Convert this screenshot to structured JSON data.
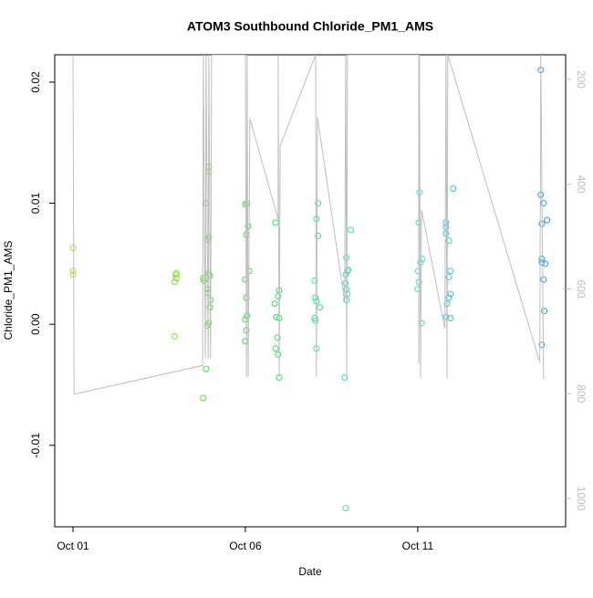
{
  "chart_data": {
    "type": "scatter",
    "title": "ATOM3 Southbound Chloride_PM1_AMS",
    "x_label": "Date",
    "y_label": "Chloride_PM1_AMS",
    "xlim": [
      0.47,
      15.29
    ],
    "xticks": [
      {
        "value": 1,
        "label": "Oct 01"
      },
      {
        "value": 6,
        "label": "Oct 06"
      },
      {
        "value": 11,
        "label": "Oct 11"
      }
    ],
    "ylim": [
      -0.01673,
      0.02226
    ],
    "yticks": [
      {
        "value": -0.01,
        "label": "-0.01"
      },
      {
        "value": 0,
        "label": "0.00"
      },
      {
        "value": 0.01,
        "label": "0.01"
      },
      {
        "value": 0.02,
        "label": "0.02"
      }
    ],
    "y2lim": [
      1054,
      153
    ],
    "y2ticks": [
      200,
      400,
      600,
      800,
      1000
    ],
    "y2_color": "#bebebe",
    "series": [
      {
        "color": "#a6e62e",
        "x": [
          1.0,
          1.0,
          1.0
        ],
        "values": [
          0.0063,
          0.0044,
          0.0041
        ]
      },
      {
        "color": "#7de62e",
        "x": [
          4.0,
          3.98,
          4.0,
          3.95,
          3.95
        ],
        "values": [
          0.0042,
          0.0041,
          0.0038,
          0.0035,
          -0.001
        ]
      },
      {
        "color": "#4ce62e",
        "x": [
          4.94,
          4.94,
          4.86,
          4.94,
          4.92,
          4.94,
          4.97,
          4.78,
          4.8,
          4.9,
          4.92,
          4.99,
          4.97,
          4.94,
          4.9,
          4.86,
          4.78
        ],
        "values": [
          0.013,
          0.0126,
          0.01,
          0.0072,
          0.007,
          0.0042,
          0.004,
          0.0038,
          0.0036,
          0.0029,
          0.0026,
          0.002,
          0.0014,
          0.0001,
          -0.0001,
          -0.0037,
          -0.0061
        ]
      },
      {
        "color": "#2ee63a",
        "x": [
          6.05,
          6.0,
          6.08,
          6.03,
          6.11,
          6.0,
          6.03,
          6.05,
          6.0,
          6.03,
          6.0
        ],
        "values": [
          0.01,
          0.0099,
          0.0081,
          0.0074,
          0.0044,
          0.0037,
          0.0022,
          0.0007,
          0.0004,
          -0.0005,
          -0.0014
        ]
      },
      {
        "color": "#2ee662",
        "x": [
          6.88,
          6.98,
          6.95,
          6.85,
          6.9,
          6.98,
          6.93,
          6.88,
          6.95,
          6.98
        ],
        "values": [
          0.0084,
          0.0028,
          0.0023,
          0.0017,
          0.0006,
          0.0005,
          -0.0011,
          -0.002,
          -0.0025,
          -0.0044
        ]
      },
      {
        "color": "#2ee68e",
        "x": [
          8.11,
          8.06,
          8.11,
          8.01,
          8.03,
          8.06,
          8.16,
          8.01,
          8.03,
          8.06
        ],
        "values": [
          0.01,
          0.0087,
          0.0073,
          0.0036,
          0.0022,
          0.0019,
          0.0014,
          0.0005,
          0.0003,
          -0.002
        ]
      },
      {
        "color": "#2ee6b6",
        "x": [
          9.06,
          8.93,
          8.98,
          8.96,
          8.91,
          8.91,
          8.93,
          8.96,
          8.93,
          8.88,
          8.91
        ],
        "values": [
          0.0078,
          0.0055,
          0.0045,
          0.0044,
          0.0041,
          0.0034,
          0.0029,
          0.0025,
          0.002,
          -0.0044,
          -0.0152
        ]
      },
      {
        "color": "#2ee6e0",
        "x": [
          11.05,
          11.03,
          11.13,
          11.08,
          11.01,
          11.03,
          11.0,
          11.11
        ],
        "values": [
          0.0109,
          0.0084,
          0.0054,
          0.0051,
          0.0044,
          0.0035,
          0.0029,
          0.0001
        ]
      },
      {
        "color": "#2ec8e6",
        "x": [
          12.03,
          11.82,
          11.82,
          11.82,
          11.9,
          11.95,
          11.9,
          11.95,
          11.9,
          11.85,
          11.82,
          11.95
        ],
        "values": [
          0.0112,
          0.0084,
          0.008,
          0.0075,
          0.0069,
          0.0044,
          0.0039,
          0.0025,
          0.0022,
          0.0017,
          0.0006,
          0.0005
        ]
      },
      {
        "color": "#2e9ee6",
        "x": [
          14.57,
          14.57,
          14.65,
          14.75,
          14.6,
          14.6,
          14.6,
          14.7,
          14.65,
          14.67,
          14.6
        ],
        "values": [
          0.021,
          0.0107,
          0.01,
          0.0086,
          0.0083,
          0.0054,
          0.0051,
          0.005,
          0.0037,
          0.0011,
          -0.0017
        ]
      },
      {
        "type": "line",
        "axis": "y2",
        "color": "#bebebe",
        "x": [
          1.0,
          1.03,
          4.76,
          4.78,
          4.84,
          4.86,
          4.92,
          4.94,
          4.99,
          5.02,
          6.0,
          6.03,
          6.05,
          6.08,
          6.13,
          6.95,
          6.95,
          6.98,
          7.01,
          8.04,
          8.06,
          8.09,
          8.88,
          8.91,
          8.94,
          8.96,
          11.03,
          11.03,
          11.05,
          11.08,
          11.11,
          11.79,
          11.82,
          11.85,
          11.87,
          14.54,
          14.57,
          14.65,
          14.7
        ],
        "values": [
          153,
          801,
          746,
          153,
          733,
          153,
          733,
          153,
          733,
          153,
          153,
          768,
          153,
          768,
          275,
          467,
          153,
          768,
          327,
          153,
          768,
          272,
          624,
          153,
          768,
          153,
          153,
          742,
          153,
          770,
          449,
          676,
          153,
          770,
          153,
          740,
          153,
          770,
          770
        ]
      }
    ]
  }
}
